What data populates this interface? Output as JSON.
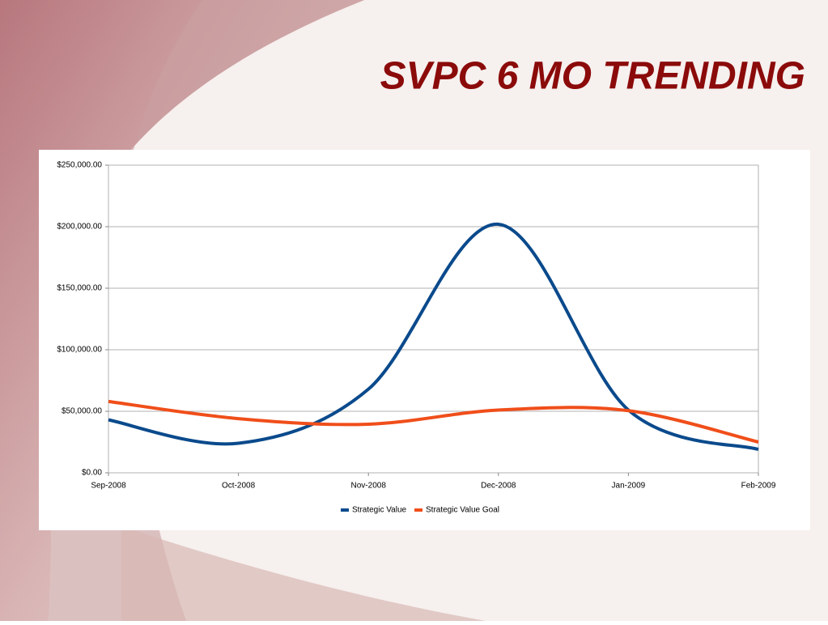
{
  "chart_data": {
    "type": "line",
    "title": "SVPC 6 MO TRENDING",
    "categories": [
      "Sep-2008",
      "Oct-2008",
      "Nov-2008",
      "Dec-2008",
      "Jan-2009",
      "Feb-2009"
    ],
    "series": [
      {
        "name": "Strategic Value",
        "color": "#0a4a8c",
        "values": [
          43000,
          24000,
          68000,
          202000,
          51000,
          19000
        ]
      },
      {
        "name": "Strategic Value Goal",
        "color": "#f04e1a",
        "values": [
          58000,
          44000,
          39500,
          51000,
          50500,
          25000
        ]
      }
    ],
    "ylim": [
      0,
      250000
    ],
    "yticks": [
      {
        "value": 0,
        "label": "$0.00"
      },
      {
        "value": 50000,
        "label": "$50,000.00"
      },
      {
        "value": 100000,
        "label": "$100,000.00"
      },
      {
        "value": 150000,
        "label": "$150,000.00"
      },
      {
        "value": 200000,
        "label": "$200,000.00"
      },
      {
        "value": 250000,
        "label": "$250,000.00"
      }
    ],
    "grid": true
  }
}
